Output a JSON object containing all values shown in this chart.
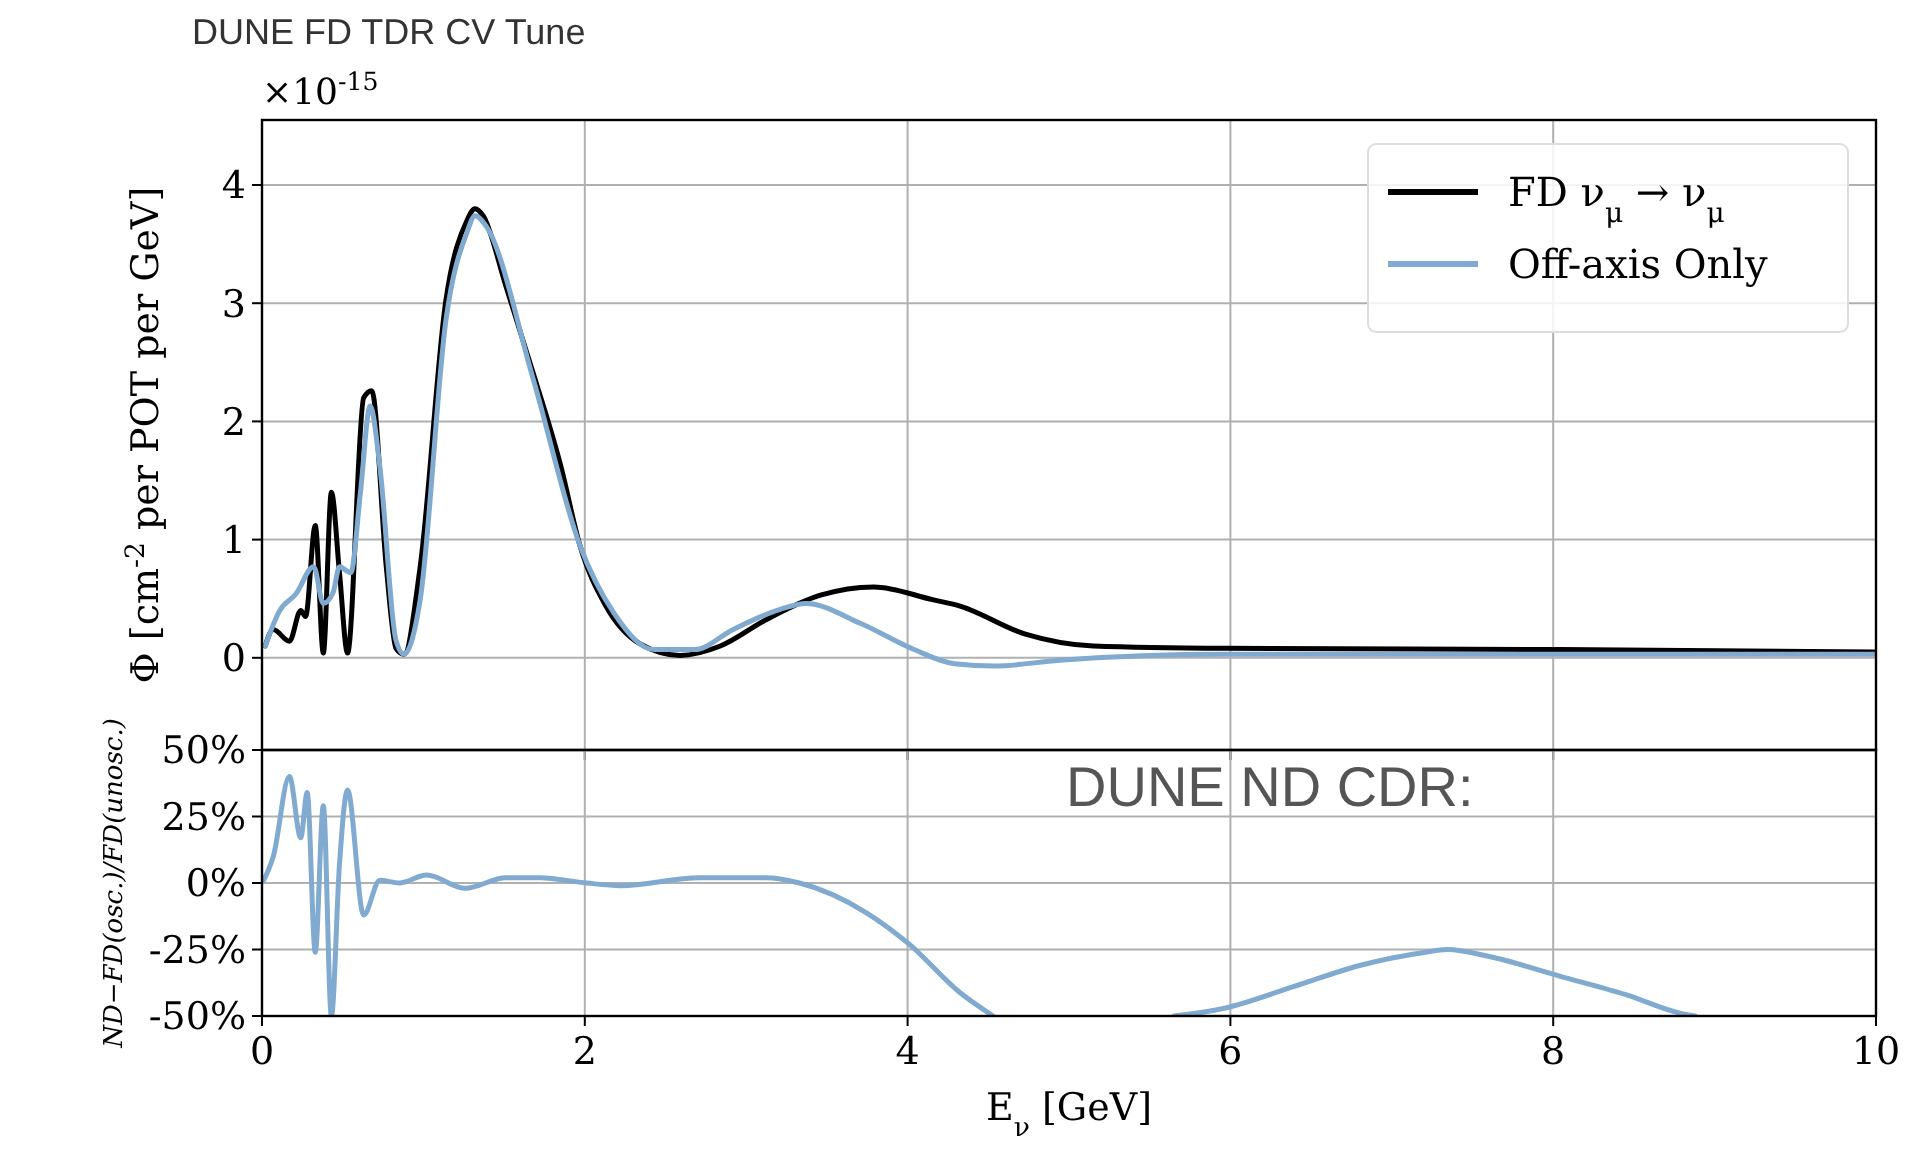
{
  "chart_data": [
    {
      "type": "line",
      "title": "DUNE FD TDR CV Tune",
      "ylabel": "Φ [cm$^{-2}$ per POT per GeV]",
      "annotations": [
        "×10$^{-15}$"
      ],
      "xlim": [
        0,
        10
      ],
      "xticks": [
        0,
        2,
        4,
        6,
        8,
        10
      ],
      "ylim": [
        -0.78,
        4.55
      ],
      "yticks": [
        0,
        1,
        2,
        3,
        4
      ],
      "tick_labels": "y",
      "grid": true,
      "legend": "top right",
      "line_style": "solid",
      "series": [
        {
          "name": "FD ν$_{μ}$ → ν$_{μ}$",
          "color": "#000000",
          "x": [
            0.02,
            0.07,
            0.17,
            0.24,
            0.27,
            0.33,
            0.38,
            0.43,
            0.48,
            0.53,
            0.63,
            0.68,
            0.77,
            0.83,
            0.88,
            0.98,
            1.14,
            1.27,
            1.32,
            1.37,
            1.51,
            1.68,
            1.85,
            1.97,
            2.13,
            2.34,
            2.59,
            2.84,
            3.12,
            3.46,
            3.79,
            4.16,
            4.32,
            4.73,
            5.15,
            5.97,
            8.04,
            9.99
          ],
          "values": [
            0.1,
            0.24,
            0.14,
            0.4,
            0.35,
            1.12,
            0.04,
            1.4,
            0.72,
            0.04,
            2.2,
            2.26,
            0.77,
            0.08,
            0.03,
            0.77,
            3.03,
            3.7,
            3.8,
            3.74,
            3.15,
            2.41,
            1.63,
            0.95,
            0.44,
            0.12,
            0.02,
            0.1,
            0.32,
            0.53,
            0.6,
            0.49,
            0.44,
            0.2,
            0.1,
            0.08,
            0.07,
            0.05
          ]
        },
        {
          "name": "Off-axis Only",
          "color": "#80aacf",
          "x": [
            0.02,
            0.11,
            0.21,
            0.32,
            0.38,
            0.44,
            0.48,
            0.55,
            0.61,
            0.67,
            0.73,
            0.83,
            0.88,
            0.98,
            1.14,
            1.27,
            1.32,
            1.39,
            1.68,
            1.97,
            2.18,
            2.43,
            2.68,
            2.92,
            3.21,
            3.37,
            3.71,
            4.04,
            4.29,
            4.54,
            4.94,
            5.97,
            9.99
          ],
          "values": [
            0.1,
            0.4,
            0.54,
            0.77,
            0.46,
            0.55,
            0.77,
            0.72,
            1.4,
            2.13,
            1.62,
            0.15,
            0.03,
            0.49,
            2.86,
            3.6,
            3.74,
            3.65,
            2.36,
            0.95,
            0.38,
            0.07,
            0.07,
            0.24,
            0.41,
            0.46,
            0.29,
            0.07,
            -0.05,
            -0.07,
            -0.02,
            0.03,
            0.03
          ]
        }
      ]
    },
    {
      "type": "line",
      "xlabel": "E$_{ν}$ [GeV]",
      "ylabel": "ND−FD(osc.)/FD(unosc.)",
      "annotations": [
        "DUNE ND CDR:"
      ],
      "xlim": [
        0,
        10
      ],
      "xticks": [
        0,
        2,
        4,
        6,
        8,
        10
      ],
      "ylim": [
        -50,
        50
      ],
      "yticks": [
        {
          "value": -50,
          "label": "-50%"
        },
        {
          "value": -25,
          "label": "-25%"
        },
        {
          "value": 0,
          "label": "0%"
        },
        {
          "value": 25,
          "label": "25%"
        },
        {
          "value": 50,
          "label": "50%"
        }
      ],
      "grid": true,
      "line_style": "solid",
      "series": [
        {
          "color": "#80aacf",
          "x": [
            0.01,
            0.07,
            0.17,
            0.24,
            0.28,
            0.33,
            0.38,
            0.43,
            0.48,
            0.53,
            0.63,
            0.73,
            0.85,
            1.02,
            1.26,
            1.51,
            1.72,
            2.01,
            2.22,
            2.71,
            3.12,
            3.33,
            3.74,
            4.01,
            4.32,
            4.53,
            5.1,
            5.65,
            5.97,
            6.39,
            6.8,
            7.21,
            7.34,
            7.63,
            8.04,
            8.45,
            8.79,
            8.88
          ],
          "values": [
            1,
            10,
            40,
            17,
            34,
            -26,
            29,
            -50,
            7,
            35,
            -12,
            1,
            0,
            3,
            -2,
            2,
            2,
            0,
            -1,
            2,
            2,
            0,
            -11,
            -23,
            -41,
            -50,
            null,
            -50,
            -47,
            -39,
            -31,
            -26,
            -25,
            -28,
            -35,
            -42,
            -49,
            -50
          ]
        }
      ]
    }
  ]
}
